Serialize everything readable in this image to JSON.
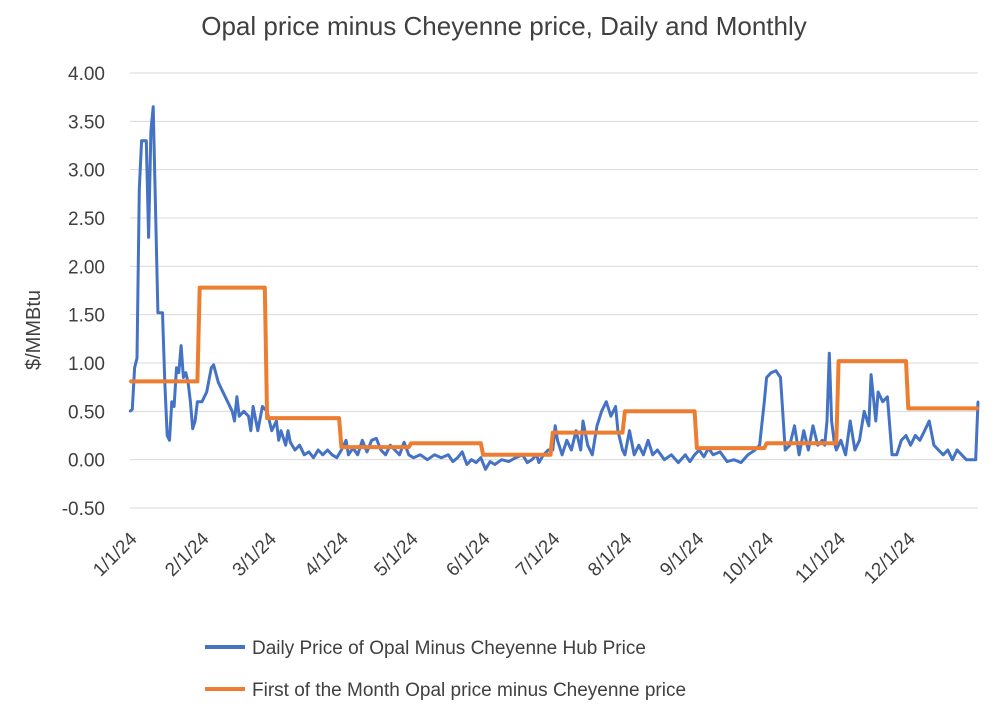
{
  "chart_data": {
    "type": "line",
    "title": "Opal price minus Cheyenne price, Daily and Monthly",
    "ylabel": "$/MMBtu",
    "xlabel": "",
    "ylim": [
      -0.5,
      4.0
    ],
    "y_ticks": [
      "-0.50",
      "0.00",
      "0.50",
      "1.00",
      "1.50",
      "2.00",
      "2.50",
      "3.00",
      "3.50",
      "4.00"
    ],
    "x_ticks": [
      "1/1/24",
      "2/1/24",
      "3/1/24",
      "4/1/24",
      "5/1/24",
      "6/1/24",
      "7/1/24",
      "8/1/24",
      "9/1/24",
      "10/1/24",
      "11/1/24",
      "12/1/24"
    ],
    "grid": "horizontal",
    "legend_position": "bottom",
    "series": [
      {
        "name": "Daily Price of Opal Minus Cheyenne Hub Price",
        "color": "#4472C4",
        "points": [
          [
            "1/1/24",
            0.5
          ],
          [
            "1/2/24",
            0.52
          ],
          [
            "1/3/24",
            0.95
          ],
          [
            "1/4/24",
            1.05
          ],
          [
            "1/5/24",
            2.8
          ],
          [
            "1/6/24",
            3.3
          ],
          [
            "1/8/24",
            3.3
          ],
          [
            "1/9/24",
            2.3
          ],
          [
            "1/10/24",
            3.4
          ],
          [
            "1/11/24",
            3.65
          ],
          [
            "1/13/24",
            1.52
          ],
          [
            "1/15/24",
            1.52
          ],
          [
            "1/16/24",
            0.8
          ],
          [
            "1/17/24",
            0.25
          ],
          [
            "1/18/24",
            0.2
          ],
          [
            "1/19/24",
            0.6
          ],
          [
            "1/20/24",
            0.55
          ],
          [
            "1/21/24",
            0.95
          ],
          [
            "1/22/24",
            0.9
          ],
          [
            "1/23/24",
            1.18
          ],
          [
            "1/24/24",
            0.85
          ],
          [
            "1/25/24",
            0.9
          ],
          [
            "1/26/24",
            0.8
          ],
          [
            "1/27/24",
            0.6
          ],
          [
            "1/28/24",
            0.32
          ],
          [
            "1/29/24",
            0.4
          ],
          [
            "1/30/24",
            0.6
          ],
          [
            "2/1/24",
            0.6
          ],
          [
            "2/3/24",
            0.7
          ],
          [
            "2/5/24",
            0.95
          ],
          [
            "2/6/24",
            0.98
          ],
          [
            "2/8/24",
            0.8
          ],
          [
            "2/10/24",
            0.7
          ],
          [
            "2/12/24",
            0.6
          ],
          [
            "2/14/24",
            0.5
          ],
          [
            "2/15/24",
            0.4
          ],
          [
            "2/16/24",
            0.65
          ],
          [
            "2/17/24",
            0.45
          ],
          [
            "2/19/24",
            0.5
          ],
          [
            "2/21/24",
            0.45
          ],
          [
            "2/22/24",
            0.3
          ],
          [
            "2/23/24",
            0.55
          ],
          [
            "2/25/24",
            0.3
          ],
          [
            "2/27/24",
            0.55
          ],
          [
            "2/29/24",
            0.5
          ],
          [
            "3/2/24",
            0.3
          ],
          [
            "3/4/24",
            0.4
          ],
          [
            "3/5/24",
            0.2
          ],
          [
            "3/6/24",
            0.3
          ],
          [
            "3/8/24",
            0.15
          ],
          [
            "3/9/24",
            0.3
          ],
          [
            "3/10/24",
            0.18
          ],
          [
            "3/12/24",
            0.1
          ],
          [
            "3/14/24",
            0.15
          ],
          [
            "3/16/24",
            0.05
          ],
          [
            "3/18/24",
            0.08
          ],
          [
            "3/20/24",
            0.02
          ],
          [
            "3/22/24",
            0.1
          ],
          [
            "3/24/24",
            0.05
          ],
          [
            "3/26/24",
            0.1
          ],
          [
            "3/28/24",
            0.05
          ],
          [
            "3/30/24",
            0.02
          ],
          [
            "4/1/24",
            0.1
          ],
          [
            "4/3/24",
            0.2
          ],
          [
            "4/4/24",
            0.05
          ],
          [
            "4/6/24",
            0.12
          ],
          [
            "4/8/24",
            0.05
          ],
          [
            "4/10/24",
            0.2
          ],
          [
            "4/12/24",
            0.08
          ],
          [
            "4/14/24",
            0.2
          ],
          [
            "4/16/24",
            0.22
          ],
          [
            "4/18/24",
            0.1
          ],
          [
            "4/20/24",
            0.05
          ],
          [
            "4/22/24",
            0.15
          ],
          [
            "4/24/24",
            0.1
          ],
          [
            "4/26/24",
            0.05
          ],
          [
            "4/28/24",
            0.18
          ],
          [
            "4/30/24",
            0.05
          ],
          [
            "5/2/24",
            0.02
          ],
          [
            "5/5/24",
            0.05
          ],
          [
            "5/8/24",
            0.0
          ],
          [
            "5/11/24",
            0.05
          ],
          [
            "5/14/24",
            0.02
          ],
          [
            "5/17/24",
            0.05
          ],
          [
            "5/19/24",
            -0.02
          ],
          [
            "5/21/24",
            0.02
          ],
          [
            "5/23/24",
            0.08
          ],
          [
            "5/25/24",
            -0.05
          ],
          [
            "5/27/24",
            0.0
          ],
          [
            "5/29/24",
            -0.03
          ],
          [
            "5/31/24",
            0.02
          ],
          [
            "6/2/24",
            -0.1
          ],
          [
            "6/4/24",
            -0.02
          ],
          [
            "6/6/24",
            -0.05
          ],
          [
            "6/9/24",
            0.0
          ],
          [
            "6/12/24",
            -0.02
          ],
          [
            "6/15/24",
            0.02
          ],
          [
            "6/18/24",
            0.05
          ],
          [
            "6/20/24",
            -0.03
          ],
          [
            "6/22/24",
            0.0
          ],
          [
            "6/24/24",
            0.05
          ],
          [
            "6/25/24",
            -0.03
          ],
          [
            "6/27/24",
            0.05
          ],
          [
            "6/29/24",
            0.1
          ],
          [
            "7/1/24",
            0.1
          ],
          [
            "7/2/24",
            0.35
          ],
          [
            "7/3/24",
            0.2
          ],
          [
            "7/5/24",
            0.05
          ],
          [
            "7/7/24",
            0.2
          ],
          [
            "7/9/24",
            0.1
          ],
          [
            "7/11/24",
            0.3
          ],
          [
            "7/13/24",
            0.1
          ],
          [
            "7/14/24",
            0.4
          ],
          [
            "7/16/24",
            0.15
          ],
          [
            "7/18/24",
            0.05
          ],
          [
            "7/20/24",
            0.35
          ],
          [
            "7/22/24",
            0.5
          ],
          [
            "7/24/24",
            0.6
          ],
          [
            "7/26/24",
            0.45
          ],
          [
            "7/28/24",
            0.55
          ],
          [
            "7/29/24",
            0.3
          ],
          [
            "7/30/24",
            0.2
          ],
          [
            "7/31/24",
            0.1
          ],
          [
            "8/1/24",
            0.05
          ],
          [
            "8/3/24",
            0.3
          ],
          [
            "8/5/24",
            0.05
          ],
          [
            "8/7/24",
            0.15
          ],
          [
            "8/9/24",
            0.05
          ],
          [
            "8/11/24",
            0.2
          ],
          [
            "8/13/24",
            0.05
          ],
          [
            "8/15/24",
            0.1
          ],
          [
            "8/18/24",
            0.0
          ],
          [
            "8/21/24",
            0.05
          ],
          [
            "8/24/24",
            -0.03
          ],
          [
            "8/27/24",
            0.05
          ],
          [
            "8/29/24",
            -0.02
          ],
          [
            "8/31/24",
            0.05
          ],
          [
            "9/2/24",
            0.1
          ],
          [
            "9/4/24",
            0.03
          ],
          [
            "9/6/24",
            0.12
          ],
          [
            "9/8/24",
            0.05
          ],
          [
            "9/11/24",
            0.08
          ],
          [
            "9/14/24",
            -0.02
          ],
          [
            "9/17/24",
            0.0
          ],
          [
            "9/20/24",
            -0.03
          ],
          [
            "9/23/24",
            0.05
          ],
          [
            "9/26/24",
            0.1
          ],
          [
            "9/28/24",
            0.15
          ],
          [
            "9/30/24",
            0.6
          ],
          [
            "10/1/24",
            0.85
          ],
          [
            "10/3/24",
            0.9
          ],
          [
            "10/5/24",
            0.92
          ],
          [
            "10/7/24",
            0.85
          ],
          [
            "10/9/24",
            0.1
          ],
          [
            "10/11/24",
            0.15
          ],
          [
            "10/13/24",
            0.35
          ],
          [
            "10/15/24",
            0.05
          ],
          [
            "10/17/24",
            0.3
          ],
          [
            "10/19/24",
            0.1
          ],
          [
            "10/21/24",
            0.35
          ],
          [
            "10/23/24",
            0.15
          ],
          [
            "10/25/24",
            0.2
          ],
          [
            "10/26/24",
            0.15
          ],
          [
            "10/27/24",
            0.4
          ],
          [
            "10/28/24",
            1.1
          ],
          [
            "10/29/24",
            0.4
          ],
          [
            "10/30/24",
            0.2
          ],
          [
            "10/31/24",
            0.1
          ],
          [
            "11/2/24",
            0.2
          ],
          [
            "11/4/24",
            0.05
          ],
          [
            "11/6/24",
            0.4
          ],
          [
            "11/8/24",
            0.1
          ],
          [
            "11/10/24",
            0.2
          ],
          [
            "11/12/24",
            0.5
          ],
          [
            "11/14/24",
            0.35
          ],
          [
            "11/15/24",
            0.88
          ],
          [
            "11/17/24",
            0.4
          ],
          [
            "11/18/24",
            0.7
          ],
          [
            "11/20/24",
            0.6
          ],
          [
            "11/22/24",
            0.65
          ],
          [
            "11/24/24",
            0.05
          ],
          [
            "11/26/24",
            0.05
          ],
          [
            "11/28/24",
            0.2
          ],
          [
            "11/30/24",
            0.25
          ],
          [
            "12/2/24",
            0.15
          ],
          [
            "12/4/24",
            0.25
          ],
          [
            "12/6/24",
            0.2
          ],
          [
            "12/8/24",
            0.3
          ],
          [
            "12/10/24",
            0.4
          ],
          [
            "12/12/24",
            0.15
          ],
          [
            "12/14/24",
            0.1
          ],
          [
            "12/16/24",
            0.05
          ],
          [
            "12/18/24",
            0.1
          ],
          [
            "12/20/24",
            0.0
          ],
          [
            "12/22/24",
            0.1
          ],
          [
            "12/24/24",
            0.05
          ],
          [
            "12/26/24",
            0.0
          ],
          [
            "12/28/24",
            0.0
          ],
          [
            "12/30/24",
            0.0
          ],
          [
            "12/31/24",
            0.6
          ]
        ]
      },
      {
        "name": "First of the Month Opal price minus Cheyenne price",
        "color": "#ED7D31",
        "points": [
          [
            "1/1/24",
            0.81
          ],
          [
            "1/30/24",
            0.81
          ],
          [
            "1/31/24",
            1.78
          ],
          [
            "2/28/24",
            1.78
          ],
          [
            "2/29/24",
            0.43
          ],
          [
            "3/31/24",
            0.43
          ],
          [
            "4/1/24",
            0.13
          ],
          [
            "4/30/24",
            0.13
          ],
          [
            "5/1/24",
            0.17
          ],
          [
            "5/31/24",
            0.17
          ],
          [
            "6/1/24",
            0.05
          ],
          [
            "6/30/24",
            0.05
          ],
          [
            "7/1/24",
            0.28
          ],
          [
            "7/31/24",
            0.28
          ],
          [
            "8/1/24",
            0.5
          ],
          [
            "8/31/24",
            0.5
          ],
          [
            "9/1/24",
            0.12
          ],
          [
            "9/30/24",
            0.12
          ],
          [
            "10/1/24",
            0.17
          ],
          [
            "10/31/24",
            0.17
          ],
          [
            "11/1/24",
            1.02
          ],
          [
            "11/30/24",
            1.02
          ],
          [
            "12/1/24",
            0.53
          ],
          [
            "12/31/24",
            0.53
          ]
        ]
      }
    ]
  }
}
